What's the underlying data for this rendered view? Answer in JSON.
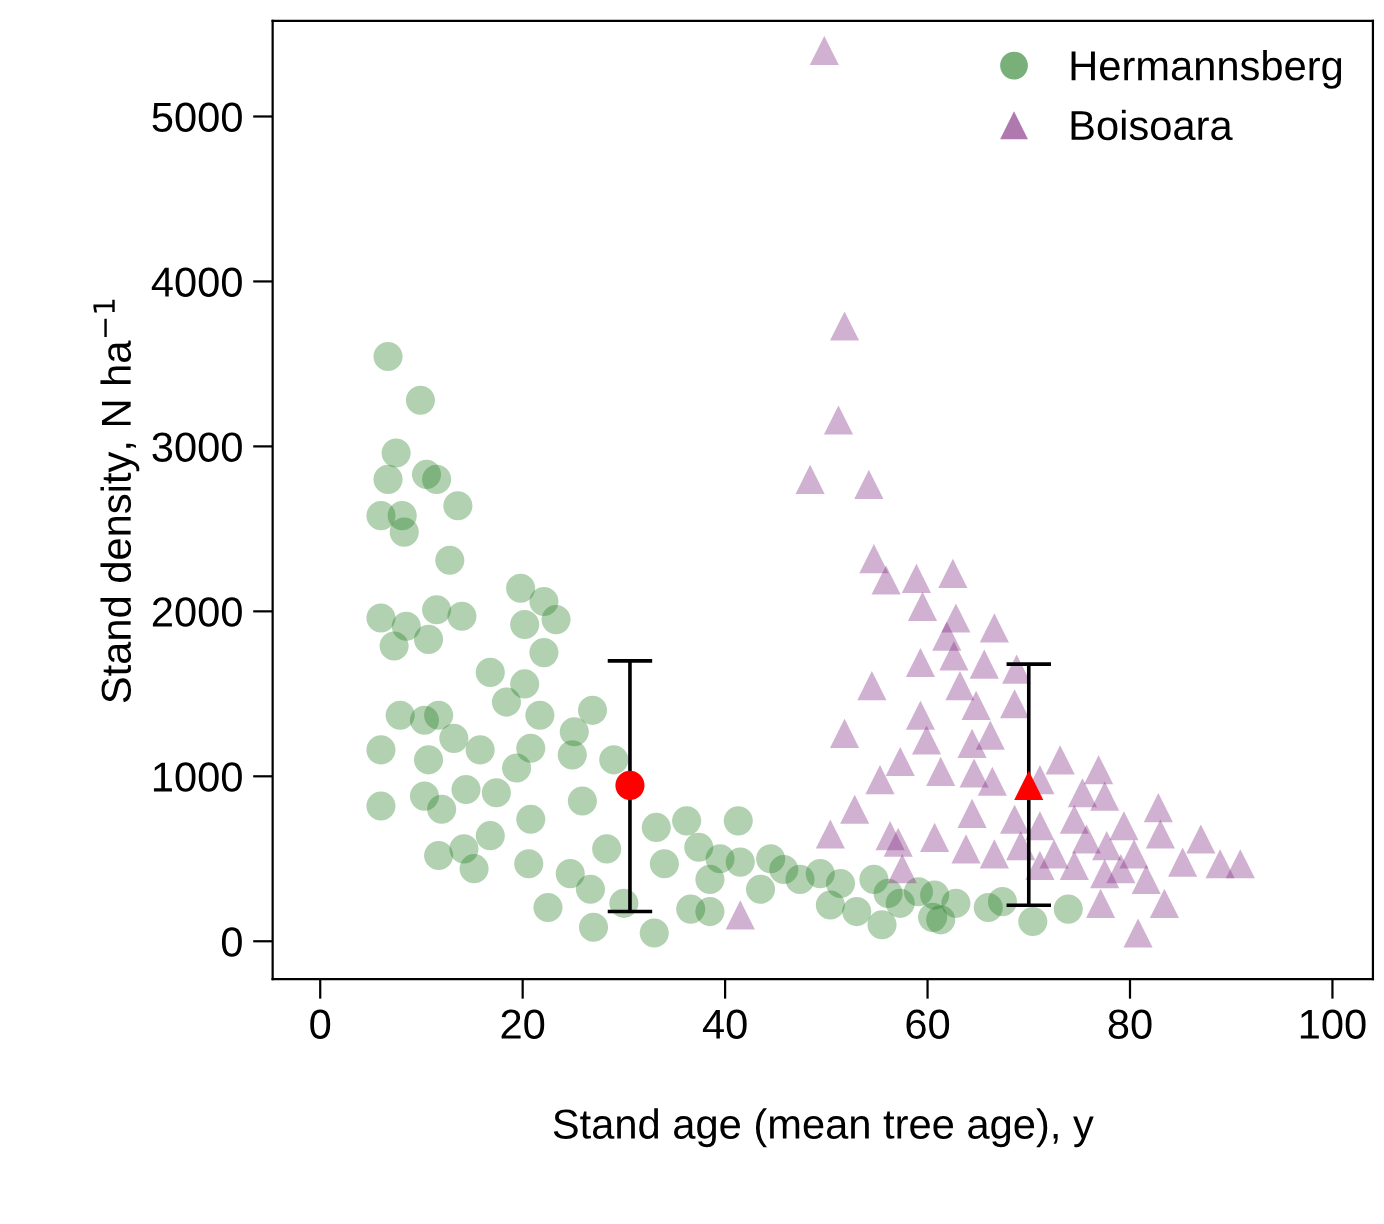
{
  "chart_data": {
    "type": "scatter",
    "xlabel": "Stand age (mean tree age), y",
    "ylabel": "Stand density, N ha$^{−1}$",
    "xlim": [
      -4.7,
      104
    ],
    "ylim": [
      -230,
      5580
    ],
    "xticks": [
      0,
      20,
      40,
      60,
      80,
      100
    ],
    "yticks": [
      0,
      1000,
      2000,
      3000,
      4000,
      5000
    ],
    "grid": false,
    "legend": "top right",
    "series": [
      {
        "name": "Hermannsberg",
        "color": "#1f7a1f",
        "marker": "circle",
        "x": [
          6.7,
          9.9,
          7.5,
          6.7,
          10.5,
          11.5,
          13.6,
          8.1,
          6,
          8.3,
          12.8,
          6,
          8.5,
          11.5,
          14,
          19.8,
          22.1,
          20.2,
          23.3,
          7.3,
          10.7,
          16.8,
          22.1,
          20.2,
          18.4,
          7.9,
          10.3,
          11.7,
          13.2,
          15.8,
          20.8,
          21.7,
          6,
          10.7,
          6,
          10.3,
          12,
          14.4,
          17.4,
          19.4,
          14.2,
          11.7,
          15.2,
          16.8,
          20.8,
          25.1,
          26.9,
          24.9,
          25.9,
          29,
          20.6,
          22.5,
          24.7,
          26.7,
          27,
          30,
          33,
          28.3,
          33.2,
          36.2,
          37.4,
          34,
          38.5,
          36.6,
          38.5,
          41.3,
          41.5,
          44.5,
          45.8,
          47.4,
          49.4,
          51.4,
          54.7,
          56.1,
          57.3,
          59.1,
          60.7,
          61.3,
          62.8,
          55.5,
          60.5,
          66,
          67.4,
          70.4,
          73.9,
          50.4,
          53,
          43.5,
          39.5
        ],
        "values": [
          3545,
          3280,
          2960,
          2800,
          2830,
          2800,
          2640,
          2580,
          2580,
          2480,
          2310,
          1960,
          1910,
          2010,
          1970,
          2140,
          2060,
          1920,
          1950,
          1790,
          1830,
          1630,
          1750,
          1560,
          1450,
          1370,
          1340,
          1370,
          1230,
          1160,
          1170,
          1370,
          1160,
          1100,
          820,
          880,
          800,
          920,
          900,
          1050,
          560,
          520,
          440,
          640,
          740,
          1270,
          1400,
          1130,
          850,
          1100,
          470,
          205,
          410,
          315,
          85,
          230,
          50,
          560,
          690,
          730,
          570,
          470,
          375,
          195,
          180,
          730,
          480,
          500,
          435,
          375,
          410,
          350,
          375,
          290,
          230,
          300,
          280,
          130,
          230,
          100,
          145,
          205,
          240,
          120,
          195,
          220,
          180,
          315,
          500
        ]
      },
      {
        "name": "Boisoara",
        "color": "#7a1f7a",
        "marker": "triangle",
        "x": [
          49.8,
          51.8,
          51.2,
          48.4,
          54.2,
          54.7,
          55.9,
          58.9,
          62.5,
          59.5,
          62.8,
          61.9,
          66.6,
          59.3,
          62.6,
          65.6,
          68.8,
          54.5,
          63.2,
          59.3,
          64.8,
          68.6,
          51.8,
          59.9,
          66.2,
          64.4,
          57.3,
          55.3,
          61.3,
          64.6,
          66.4,
          73.1,
          76.9,
          71.1,
          52.8,
          75.3,
          77.5,
          82.8,
          64.4,
          68.6,
          71.1,
          74.5,
          79.4,
          50.4,
          57.1,
          60.7,
          63.8,
          66.6,
          69.2,
          72.5,
          75.7,
          77.7,
          80.4,
          83,
          87,
          85.2,
          88.9,
          90.9,
          79.1,
          81.6,
          77.5,
          74.5,
          71.1,
          57.5,
          77.1,
          83.4,
          80.8,
          41.5,
          56.3
        ],
        "values": [
          5400,
          3730,
          3160,
          2800,
          2770,
          2320,
          2190,
          2200,
          2230,
          2030,
          1960,
          1850,
          1900,
          1690,
          1730,
          1680,
          1650,
          1550,
          1550,
          1370,
          1430,
          1440,
          1260,
          1220,
          1250,
          1200,
          1090,
          980,
          1030,
          1020,
          970,
          1100,
          1040,
          980,
          800,
          900,
          880,
          810,
          775,
          740,
          700,
          740,
          700,
          650,
          600,
          630,
          560,
          530,
          580,
          530,
          620,
          580,
          530,
          650,
          620,
          480,
          470,
          470,
          440,
          375,
          410,
          460,
          460,
          440,
          230,
          230,
          50,
          160,
          640
        ]
      },
      {
        "color": "#ff0000",
        "marker": "circle",
        "x": [
          30.6
        ],
        "values": [
          945
        ],
        "errors": [
          [
            180,
            1700
          ]
        ]
      },
      {
        "color": "#ff0000",
        "marker": "triangle",
        "x": [
          70
        ],
        "values": [
          945
        ],
        "errors": [
          [
            218,
            1680
          ]
        ]
      }
    ]
  }
}
